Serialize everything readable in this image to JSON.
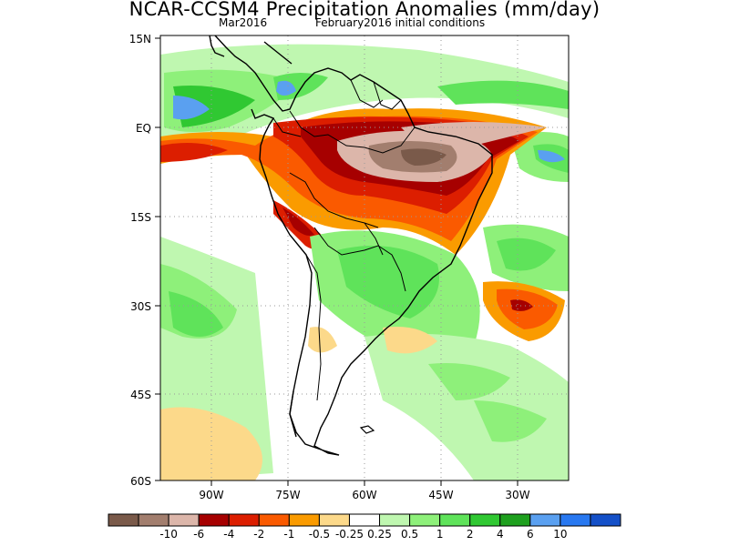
{
  "header": {
    "title": "NCAR-CCSM4 Precipitation Anomalies (mm/day)",
    "valid_month": "Mar2016",
    "initial_conditions": "February2016 initial conditions"
  },
  "map": {
    "lat_labels": [
      "15N",
      "EQ",
      "15S",
      "30S",
      "45S",
      "60S"
    ],
    "lon_labels": [
      "90W",
      "75W",
      "60W",
      "45W",
      "30W"
    ]
  },
  "colorbar": {
    "colors": [
      "#7a5a4a",
      "#a27e6e",
      "#dcb6aa",
      "#a60000",
      "#dc1e00",
      "#fa5a00",
      "#fa9b00",
      "#fcd98a",
      "#ffffff",
      "#bff7b0",
      "#8ef07a",
      "#5fe35a",
      "#30c832",
      "#1ea01e",
      "#5aa0f0",
      "#2878f0",
      "#1450c8"
    ],
    "tick_labels": [
      "-10",
      "-6",
      "-4",
      "-2",
      "-1",
      "-0.5",
      "-0.25",
      "0.25",
      "0.5",
      "1",
      "2",
      "4",
      "6",
      "10"
    ]
  }
}
